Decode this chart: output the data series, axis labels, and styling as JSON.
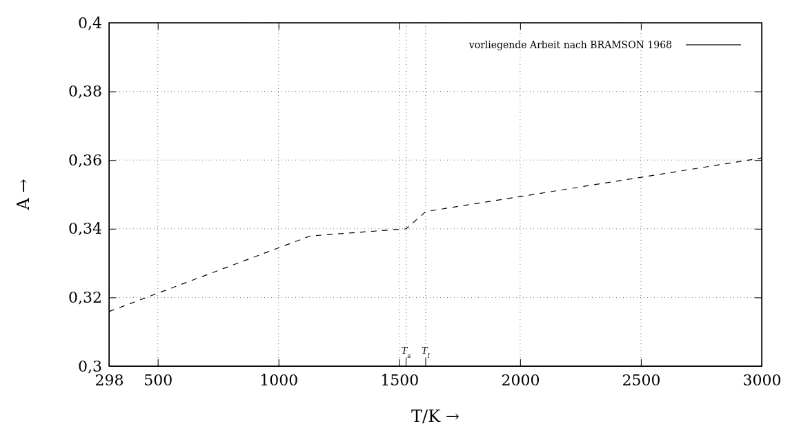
{
  "chart_data": {
    "type": "line",
    "xlabel": "T/K →",
    "ylabel": "A →",
    "series": [
      {
        "name": "vorliegende Arbeit nach BRAMSON 1968",
        "color": "#000000",
        "x": [
          298,
          1131,
          1528,
          1609,
          3000
        ],
        "values": [
          0.3159,
          0.3379,
          0.34,
          0.345,
          0.3606
        ]
      }
    ],
    "xlim": [
      298,
      3000
    ],
    "xticks": [
      298,
      500,
      1000,
      1500,
      2000,
      2500,
      3000
    ],
    "ylim": [
      0.3,
      0.4
    ],
    "yticks": [
      {
        "value": 0.3,
        "label": "0,3"
      },
      {
        "value": 0.32,
        "label": "0,32"
      },
      {
        "value": 0.34,
        "label": "0,34"
      },
      {
        "value": 0.36,
        "label": "0,36"
      },
      {
        "value": 0.38,
        "label": "0,38"
      },
      {
        "value": 0.4,
        "label": "0,4"
      }
    ],
    "ref_lines": [
      {
        "axis": "x",
        "value": 1528,
        "label": "T$_{s}$",
        "line_style": "dotted"
      },
      {
        "axis": "x",
        "value": 1609,
        "label": "T$_{l}$",
        "line_style": "dotted"
      }
    ],
    "grid": true,
    "legend": "top right",
    "line_style": "dashed",
    "marker": "none"
  }
}
